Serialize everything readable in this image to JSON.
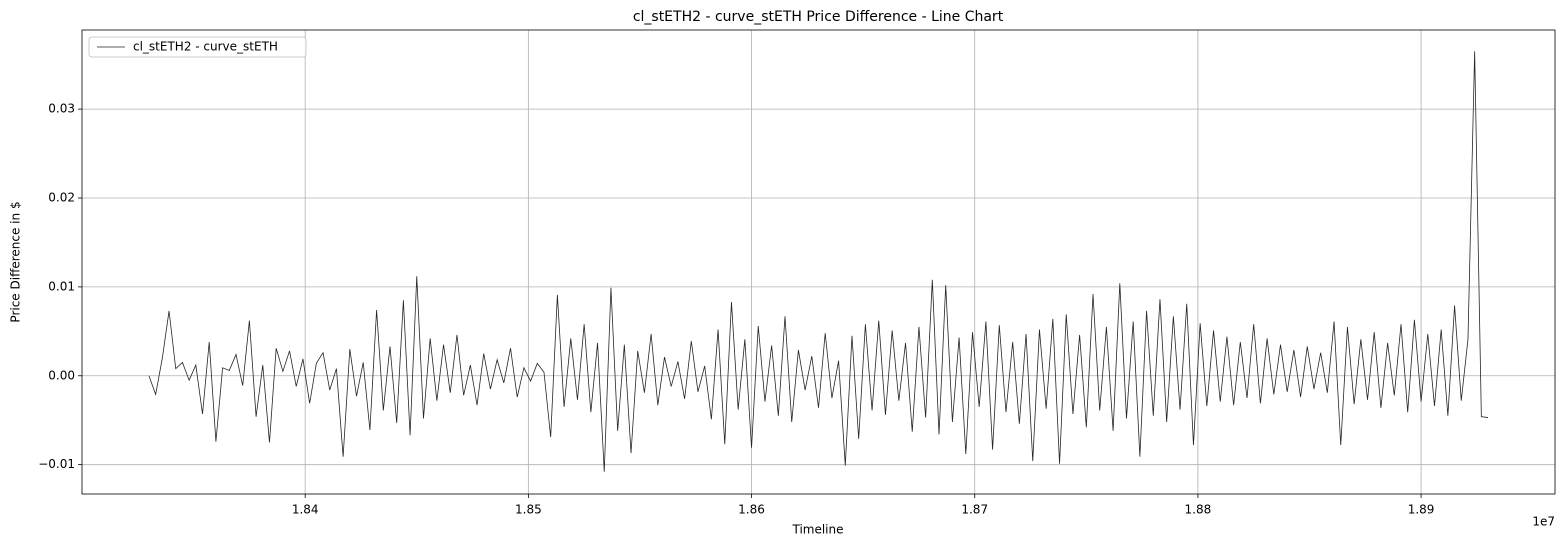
{
  "chart_data": {
    "type": "line",
    "title": "cl_stETH2 - curve_stETH Price Difference - Line Chart",
    "xlabel": "Timeline",
    "ylabel": "Price Difference in $",
    "x_offset_text": "1e7",
    "x": [
      18330000,
      18333000,
      18336000,
      18339000,
      18342000,
      18345000,
      18348000,
      18351000,
      18354000,
      18357000,
      18360000,
      18363000,
      18366000,
      18369000,
      18372000,
      18375000,
      18378000,
      18381000,
      18384000,
      18387000,
      18390000,
      18393000,
      18396000,
      18399000,
      18402000,
      18405000,
      18408000,
      18411000,
      18414000,
      18417000,
      18420000,
      18423000,
      18426000,
      18429000,
      18432000,
      18435000,
      18438000,
      18441000,
      18444000,
      18447000,
      18450000,
      18453000,
      18456000,
      18459000,
      18462000,
      18465000,
      18468000,
      18471000,
      18474000,
      18477000,
      18480000,
      18483000,
      18486000,
      18489000,
      18492000,
      18495000,
      18498000,
      18501000,
      18504000,
      18507000,
      18510000,
      18513000,
      18516000,
      18519000,
      18522000,
      18525000,
      18528000,
      18531000,
      18534000,
      18537000,
      18540000,
      18543000,
      18546000,
      18549000,
      18552000,
      18555000,
      18558000,
      18561000,
      18564000,
      18567000,
      18570000,
      18573000,
      18576000,
      18579000,
      18582000,
      18585000,
      18588000,
      18591000,
      18594000,
      18597000,
      18600000,
      18603000,
      18606000,
      18609000,
      18612000,
      18615000,
      18618000,
      18621000,
      18624000,
      18627000,
      18630000,
      18633000,
      18636000,
      18639000,
      18642000,
      18645000,
      18648000,
      18651000,
      18654000,
      18657000,
      18660000,
      18663000,
      18666000,
      18669000,
      18672000,
      18675000,
      18678000,
      18681000,
      18684000,
      18687000,
      18690000,
      18693000,
      18696000,
      18699000,
      18702000,
      18705000,
      18708000,
      18711000,
      18714000,
      18717000,
      18720000,
      18723000,
      18726000,
      18729000,
      18732000,
      18735000,
      18738000,
      18741000,
      18744000,
      18747000,
      18750000,
      18753000,
      18756000,
      18759000,
      18762000,
      18765000,
      18768000,
      18771000,
      18774000,
      18777000,
      18780000,
      18783000,
      18786000,
      18789000,
      18792000,
      18795000,
      18798000,
      18801000,
      18804000,
      18807000,
      18810000,
      18813000,
      18816000,
      18819000,
      18822000,
      18825000,
      18828000,
      18831000,
      18834000,
      18837000,
      18840000,
      18843000,
      18846000,
      18849000,
      18852000,
      18855000,
      18858000,
      18861000,
      18864000,
      18867000,
      18870000,
      18873000,
      18876000,
      18879000,
      18882000,
      18885000,
      18888000,
      18891000,
      18894000,
      18897000,
      18900000,
      18903000,
      18906000,
      18909000,
      18912000,
      18915000,
      18918000,
      18921000,
      18924000,
      18927000,
      18930000
    ],
    "series": [
      {
        "name": "cl_stETH2 - curve_stETH",
        "color": "#262626",
        "values": [
          0,
          -0.0021,
          0.002,
          0.0073,
          0.0008,
          0.0015,
          -0.0005,
          0.0012,
          -0.0043,
          0.0038,
          -0.0074,
          0.0009,
          0.0006,
          0.0024,
          -0.0011,
          0.0062,
          -0.0046,
          0.0012,
          -0.0075,
          0.0031,
          0.0005,
          0.0028,
          -0.0012,
          0.0019,
          -0.0031,
          0.0014,
          0.0026,
          -0.0016,
          0.0008,
          -0.0091,
          0.003,
          -0.0023,
          0.0015,
          -0.0061,
          0.0074,
          -0.0039,
          0.0033,
          -0.0053,
          0.0085,
          -0.0067,
          0.0112,
          -0.0048,
          0.0042,
          -0.0028,
          0.0035,
          -0.0019,
          0.0046,
          -0.0022,
          0.0012,
          -0.0033,
          0.0025,
          -0.0015,
          0.0018,
          -0.0008,
          0.0031,
          -0.0024,
          0.0009,
          -0.0006,
          0.0014,
          0.0004,
          -0.0069,
          0.0091,
          -0.0035,
          0.0042,
          -0.0027,
          0.0058,
          -0.0041,
          0.0037,
          -0.0108,
          0.0099,
          -0.0062,
          0.0035,
          -0.0087,
          0.0028,
          -0.0019,
          0.0047,
          -0.0033,
          0.0021,
          -0.0012,
          0.0016,
          -0.0026,
          0.0039,
          -0.0018,
          0.0011,
          -0.0049,
          0.0052,
          -0.0077,
          0.0083,
          -0.0038,
          0.0041,
          -0.0081,
          0.0056,
          -0.0029,
          0.0034,
          -0.0045,
          0.0067,
          -0.0052,
          0.0029,
          -0.0016,
          0.0022,
          -0.0036,
          0.0048,
          -0.0025,
          0.0017,
          -0.0101,
          0.0045,
          -0.0071,
          0.0058,
          -0.0039,
          0.0062,
          -0.0044,
          0.0051,
          -0.0028,
          0.0037,
          -0.0063,
          0.0055,
          -0.0047,
          0.0108,
          -0.0066,
          0.0102,
          -0.0052,
          0.0043,
          -0.0088,
          0.0049,
          -0.0035,
          0.0061,
          -0.0083,
          0.0057,
          -0.0041,
          0.0038,
          -0.0054,
          0.0047,
          -0.0096,
          0.0052,
          -0.0037,
          0.0064,
          -0.0099,
          0.0069,
          -0.0043,
          0.0046,
          -0.0058,
          0.0092,
          -0.0039,
          0.0055,
          -0.0062,
          0.0104,
          -0.0048,
          0.0061,
          -0.0091,
          0.0073,
          -0.0045,
          0.0086,
          -0.0052,
          0.0067,
          -0.0038,
          0.0081,
          -0.0078,
          0.0059,
          -0.0034,
          0.0051,
          -0.0029,
          0.0044,
          -0.0033,
          0.0038,
          -0.0025,
          0.0058,
          -0.0031,
          0.0042,
          -0.0021,
          0.0035,
          -0.0018,
          0.0029,
          -0.0024,
          0.0033,
          -0.0015,
          0.0026,
          -0.0019,
          0.0061,
          -0.0078,
          0.0055,
          -0.0032,
          0.0041,
          -0.0027,
          0.0049,
          -0.0036,
          0.0037,
          -0.0022,
          0.0058,
          -0.0041,
          0.0063,
          -0.0029,
          0.0047,
          -0.0034,
          0.0052,
          -0.0045,
          0.0079,
          -0.0028,
          0.0041,
          0.0365,
          -0.0046,
          -0.0047
        ]
      }
    ],
    "xlim": [
      18300000,
      18960000
    ],
    "xticks": [
      {
        "value": 18400000,
        "label": "1.84"
      },
      {
        "value": 18500000,
        "label": "1.85"
      },
      {
        "value": 18600000,
        "label": "1.86"
      },
      {
        "value": 18700000,
        "label": "1.87"
      },
      {
        "value": 18800000,
        "label": "1.88"
      },
      {
        "value": 18900000,
        "label": "1.89"
      }
    ],
    "ylim": [
      -0.0133,
      0.0389
    ],
    "yticks": [
      {
        "value": -0.01,
        "label": "−0.01"
      },
      {
        "value": 0,
        "label": "0.00"
      },
      0.01,
      0.02,
      0.03
    ],
    "grid": true,
    "legend": "upper-left"
  }
}
